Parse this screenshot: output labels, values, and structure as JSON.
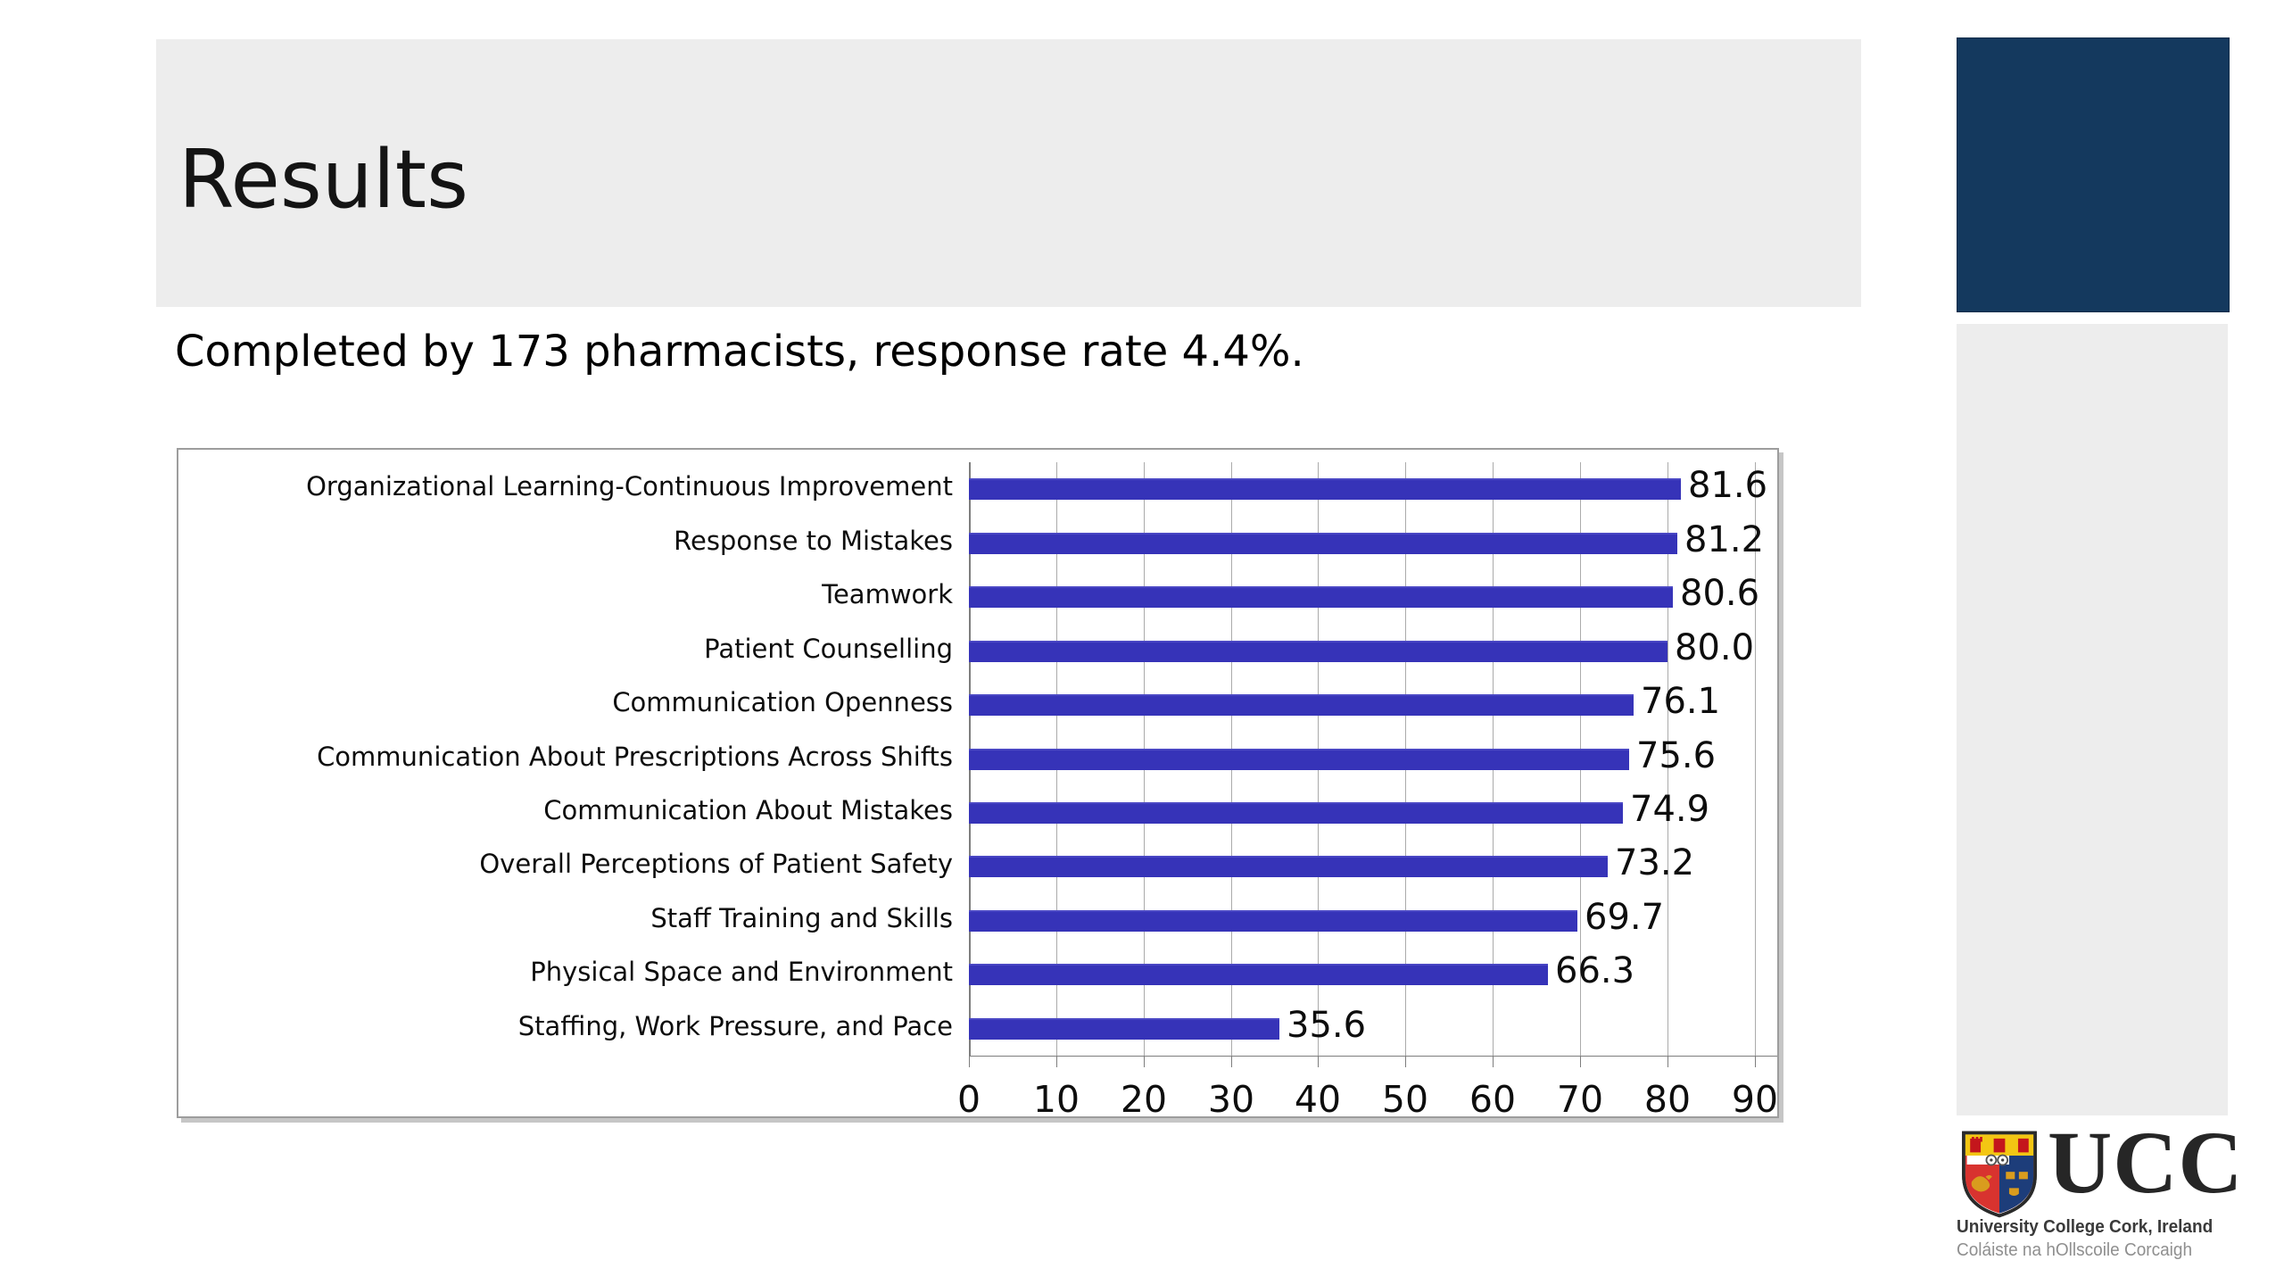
{
  "slide": {
    "title": "Results",
    "subtitle": "Completed by 173 pharmacists, response rate 4.4%."
  },
  "chart_data": {
    "type": "bar",
    "orientation": "horizontal",
    "title": "",
    "xlabel": "",
    "ylabel": "",
    "categories": [
      "Organizational Learning-Continuous Improvement",
      "Response to Mistakes",
      "Teamwork",
      "Patient Counselling",
      "Communication Openness",
      "Communication About Prescriptions Across Shifts",
      "Communication About Mistakes",
      "Overall Perceptions of Patient Safety",
      "Staff Training and Skills",
      "Physical Space and Environment",
      "Staffing, Work Pressure, and Pace"
    ],
    "values": [
      81.6,
      81.2,
      80.6,
      80.0,
      76.1,
      75.6,
      74.9,
      73.2,
      69.7,
      66.3,
      35.6
    ],
    "value_labels": [
      "81.6",
      "81.2",
      "80.6",
      "80.0",
      "76.1",
      "75.6",
      "74.9",
      "73.2",
      "69.7",
      "66.3",
      "35.6"
    ],
    "x_ticks": [
      0,
      10,
      20,
      30,
      40,
      50,
      60,
      70,
      80,
      90
    ],
    "xlim": [
      0,
      92.6
    ],
    "grid": true,
    "legend": false,
    "bar_color": "#3633b8"
  },
  "logo": {
    "acronym": "UCC",
    "line1": "University College Cork, Ireland",
    "line2": "Coláiste na hOllscoile Corcaigh"
  },
  "colors": {
    "band_gray": "#ededed",
    "accent_navy": "#14395e",
    "bar_blue": "#3633b8"
  }
}
